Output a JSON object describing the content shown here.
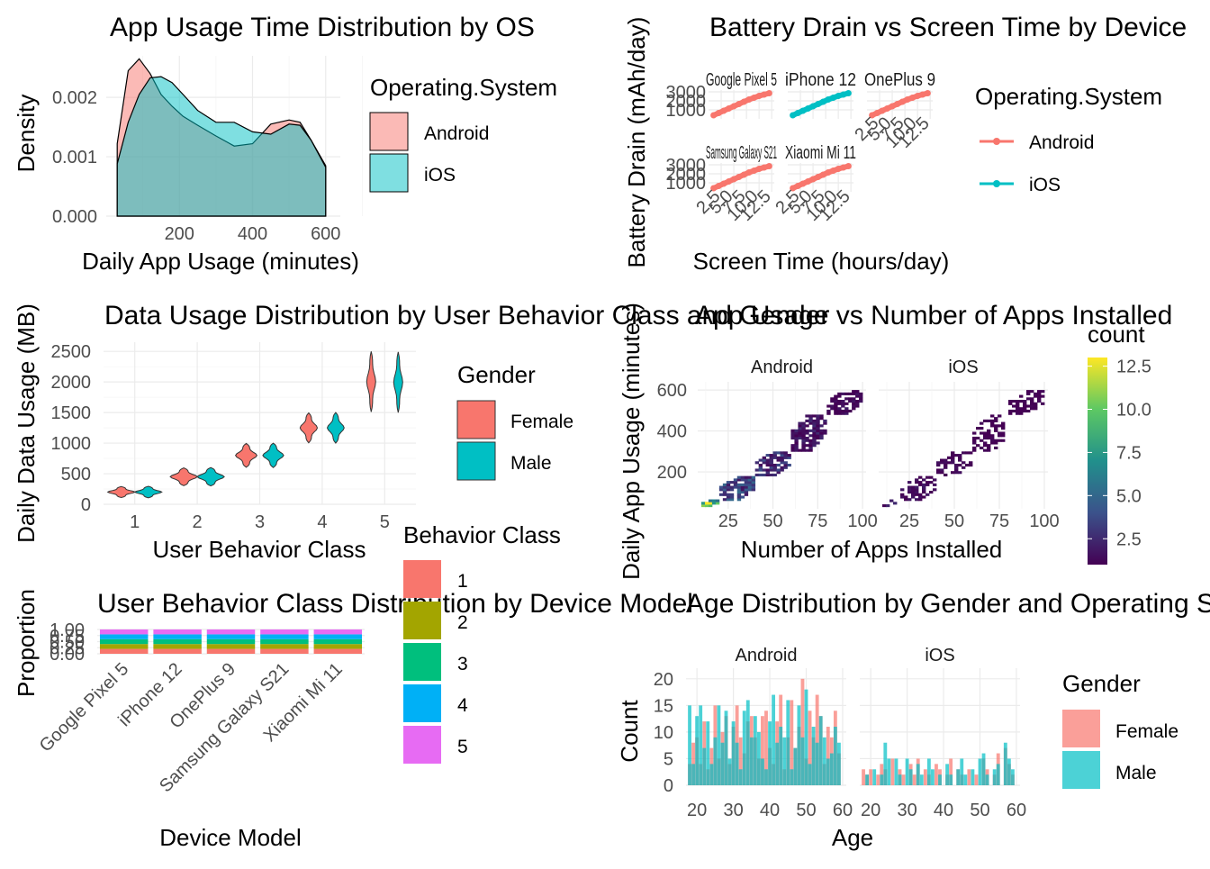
{
  "colors": {
    "android": "#F8766D",
    "ios": "#00BFC4",
    "classes": [
      "#F8766D",
      "#A3A500",
      "#00BF7D",
      "#00B0F6",
      "#E76BF3"
    ],
    "viridis": [
      "#440154",
      "#3B528B",
      "#21908C",
      "#5DC863",
      "#FDE725"
    ]
  },
  "chart_data": [
    {
      "id": "p1",
      "type": "area",
      "title": "App Usage Time Distribution by OS",
      "xlabel": "Daily App Usage (minutes)",
      "ylabel": "Density",
      "xlim": [
        0,
        640
      ],
      "ylim": [
        0,
        0.0027
      ],
      "xticks": [
        200,
        400,
        600
      ],
      "yticks": [
        0.0,
        0.001,
        0.002
      ],
      "ytick_labels": [
        "0.000",
        "0.001",
        "0.002"
      ],
      "legend": {
        "title": "Operating.System",
        "position": "right"
      },
      "series": [
        {
          "name": "Android",
          "x": [
            30,
            60,
            90,
            120,
            150,
            180,
            210,
            250,
            300,
            350,
            400,
            450,
            500,
            530,
            560,
            600
          ],
          "values": [
            0.00122,
            0.00245,
            0.00265,
            0.0024,
            0.00205,
            0.00185,
            0.00168,
            0.00153,
            0.00135,
            0.00118,
            0.00122,
            0.00155,
            0.00162,
            0.00158,
            0.00128,
            0.00085
          ]
        },
        {
          "name": "iOS",
          "x": [
            30,
            60,
            90,
            120,
            150,
            180,
            210,
            250,
            300,
            350,
            400,
            450,
            500,
            530,
            560,
            600
          ],
          "values": [
            0.00088,
            0.00158,
            0.00205,
            0.00233,
            0.00235,
            0.00225,
            0.00205,
            0.00178,
            0.00158,
            0.00158,
            0.00142,
            0.00138,
            0.00155,
            0.00153,
            0.00128,
            0.00082
          ]
        }
      ]
    },
    {
      "id": "p2",
      "type": "line",
      "title": "Battery Drain vs Screen Time by Device",
      "xlabel": "Screen Time (hours/day)",
      "ylabel": "Battery Drain (mAh/day)",
      "legend": {
        "title": "Operating.System",
        "position": "right",
        "entries": [
          "Android",
          "iOS"
        ]
      },
      "facets": [
        "Google Pixel 5",
        "iPhone 12",
        "OnePlus 9",
        "Samsung Galaxy S21",
        "Xiaomi Mi 11"
      ],
      "facet_os": [
        "Android",
        "iOS",
        "Android",
        "Android",
        "Android"
      ],
      "xticks": [
        2.5,
        5.0,
        7.5,
        10.0,
        12.5
      ],
      "xtick_labels": [
        "2.5",
        "5.0",
        "7.5",
        "10.0",
        "12.5"
      ],
      "yticks": [
        1000,
        2000,
        3000
      ],
      "ytick_labels": [
        "1000",
        "2000",
        "3000"
      ],
      "xlim": [
        0,
        13
      ],
      "ylim": [
        0,
        3200
      ],
      "x": [
        1,
        2,
        3,
        4,
        5,
        6,
        7,
        8,
        9,
        10,
        11,
        12
      ],
      "values": [
        400,
        650,
        900,
        1150,
        1400,
        1650,
        1900,
        2150,
        2350,
        2550,
        2700,
        2850
      ]
    },
    {
      "id": "p3",
      "type": "violin",
      "title": "Data Usage Distribution by User Behavior Class and Gender",
      "xlabel": "User Behavior Class",
      "ylabel": "Daily Data Usage (MB)",
      "categories": [
        "1",
        "2",
        "3",
        "4",
        "5"
      ],
      "ylim": [
        0,
        2650
      ],
      "yticks": [
        0,
        500,
        1000,
        1500,
        2000,
        2500
      ],
      "legend": {
        "title": "Gender",
        "position": "right"
      },
      "series": [
        {
          "name": "Female",
          "ranges": [
            [
              110,
              290
            ],
            [
              305,
              595
            ],
            [
              605,
              995
            ],
            [
              1005,
              1495
            ],
            [
              1510,
              2500
            ]
          ]
        },
        {
          "name": "Male",
          "ranges": [
            [
              105,
              295
            ],
            [
              300,
              600
            ],
            [
              600,
              1000
            ],
            [
              1000,
              1500
            ],
            [
              1500,
              2490
            ]
          ]
        }
      ]
    },
    {
      "id": "p4",
      "type": "heatmap",
      "title": "App Usage vs Number of Apps Installed",
      "xlabel": "Number of Apps Installed",
      "ylabel": "Daily App Usage (minutes)",
      "facets": [
        "Android",
        "iOS"
      ],
      "xlim": [
        8,
        102
      ],
      "ylim": [
        20,
        640
      ],
      "xticks": [
        25,
        50,
        75,
        100
      ],
      "yticks": [
        200,
        400,
        600
      ],
      "legend": {
        "title": "count",
        "position": "right",
        "breaks": [
          2.5,
          5.0,
          7.5,
          10.0,
          12.5
        ],
        "break_labels": [
          "2.5",
          "5.0",
          "7.5",
          "10.0",
          "12.5"
        ],
        "range": [
          1,
          13
        ]
      },
      "clusters": [
        {
          "facet": "Android",
          "x": [
            10,
            20
          ],
          "y": [
            30,
            60
          ],
          "count": 12
        },
        {
          "facet": "Android",
          "x": [
            20,
            40
          ],
          "y": [
            60,
            180
          ],
          "count": 4
        },
        {
          "facet": "Android",
          "x": [
            40,
            60
          ],
          "y": [
            180,
            300
          ],
          "count": 3
        },
        {
          "facet": "Android",
          "x": [
            60,
            80
          ],
          "y": [
            300,
            480
          ],
          "count": 2
        },
        {
          "facet": "Android",
          "x": [
            80,
            100
          ],
          "y": [
            480,
            600
          ],
          "count": 1.5
        },
        {
          "facet": "iOS",
          "x": [
            10,
            20
          ],
          "y": [
            30,
            60
          ],
          "count": 2
        },
        {
          "facet": "iOS",
          "x": [
            20,
            40
          ],
          "y": [
            60,
            180
          ],
          "count": 1.5
        },
        {
          "facet": "iOS",
          "x": [
            40,
            60
          ],
          "y": [
            180,
            300
          ],
          "count": 1.2
        },
        {
          "facet": "iOS",
          "x": [
            60,
            80
          ],
          "y": [
            300,
            480
          ],
          "count": 1
        },
        {
          "facet": "iOS",
          "x": [
            80,
            100
          ],
          "y": [
            480,
            600
          ],
          "count": 1
        }
      ]
    },
    {
      "id": "p5",
      "type": "bar",
      "stacked": true,
      "title": "User Behavior Class Distribution by Device Model",
      "xlabel": "Device Model",
      "ylabel": "Proportion",
      "categories": [
        "Google Pixel 5",
        "iPhone 12",
        "OnePlus 9",
        "Samsung Galaxy S21",
        "Xiaomi Mi 11"
      ],
      "ylim": [
        0,
        1
      ],
      "yticks": [
        0.0,
        0.25,
        0.5,
        0.75,
        1.0
      ],
      "ytick_labels": [
        "0.00",
        "0.25",
        "0.50",
        "0.75",
        "1.00"
      ],
      "legend": {
        "title": "Behavior Class",
        "position": "right"
      },
      "series": [
        {
          "name": "1",
          "values": [
            0.2,
            0.2,
            0.2,
            0.2,
            0.2
          ]
        },
        {
          "name": "2",
          "values": [
            0.2,
            0.2,
            0.2,
            0.2,
            0.2
          ]
        },
        {
          "name": "3",
          "values": [
            0.2,
            0.2,
            0.2,
            0.2,
            0.2
          ]
        },
        {
          "name": "4",
          "values": [
            0.2,
            0.2,
            0.2,
            0.2,
            0.2
          ]
        },
        {
          "name": "5",
          "values": [
            0.2,
            0.2,
            0.2,
            0.2,
            0.2
          ]
        }
      ]
    },
    {
      "id": "p6",
      "type": "bar",
      "title": "Age Distribution by Gender and Operating System",
      "xlabel": "Age",
      "ylabel": "Count",
      "facets": [
        "Android",
        "iOS"
      ],
      "xlim": [
        17,
        61
      ],
      "ylim": [
        0,
        22
      ],
      "xticks": [
        20,
        30,
        40,
        50,
        60
      ],
      "yticks": [
        0,
        5,
        10,
        15,
        20
      ],
      "legend": {
        "title": "Gender",
        "position": "right"
      },
      "ages": [
        18,
        19,
        20,
        21,
        22,
        23,
        24,
        25,
        26,
        27,
        28,
        29,
        30,
        31,
        32,
        33,
        34,
        35,
        36,
        37,
        38,
        39,
        40,
        41,
        42,
        43,
        44,
        45,
        46,
        47,
        48,
        49,
        50,
        51,
        52,
        53,
        54,
        55,
        56,
        57,
        58,
        59
      ],
      "series": [
        {
          "name": "Female",
          "facet": "Android",
          "values": [
            4,
            8,
            9,
            4,
            12,
            3,
            7,
            15,
            5,
            10,
            13,
            4,
            11,
            15,
            9,
            6,
            12,
            13,
            9,
            5,
            13,
            14,
            7,
            4,
            12,
            17,
            3,
            9,
            16,
            7,
            11,
            20,
            5,
            14,
            9,
            17,
            13,
            4,
            11,
            9,
            14,
            6
          ]
        },
        {
          "name": "Male",
          "facet": "Android",
          "values": [
            15,
            4,
            13,
            15,
            7,
            12,
            4,
            9,
            15,
            8,
            14,
            5,
            12,
            8,
            3,
            14,
            16,
            9,
            13,
            10,
            5,
            3,
            12,
            17,
            8,
            11,
            9,
            16,
            3,
            7,
            15,
            9,
            18,
            4,
            11,
            8,
            13,
            9,
            5,
            6,
            11,
            8
          ]
        },
        {
          "name": "Female",
          "facet": "iOS",
          "values": [
            3,
            2,
            3,
            0,
            2,
            4,
            3,
            0,
            5,
            0,
            3,
            2,
            0,
            4,
            2,
            5,
            0,
            3,
            2,
            0,
            4,
            3,
            0,
            2,
            5,
            0,
            3,
            2,
            0,
            3,
            0,
            2,
            0,
            5,
            3,
            0,
            2,
            6,
            0,
            7,
            4,
            2
          ]
        },
        {
          "name": "Male",
          "facet": "iOS",
          "values": [
            0,
            2,
            0,
            3,
            0,
            2,
            8,
            5,
            0,
            5,
            2,
            0,
            5,
            3,
            0,
            4,
            2,
            0,
            5,
            3,
            0,
            2,
            0,
            4,
            2,
            0,
            3,
            5,
            2,
            0,
            3,
            0,
            5,
            6,
            2,
            0,
            3,
            4,
            0,
            8,
            5,
            3
          ]
        }
      ]
    }
  ]
}
